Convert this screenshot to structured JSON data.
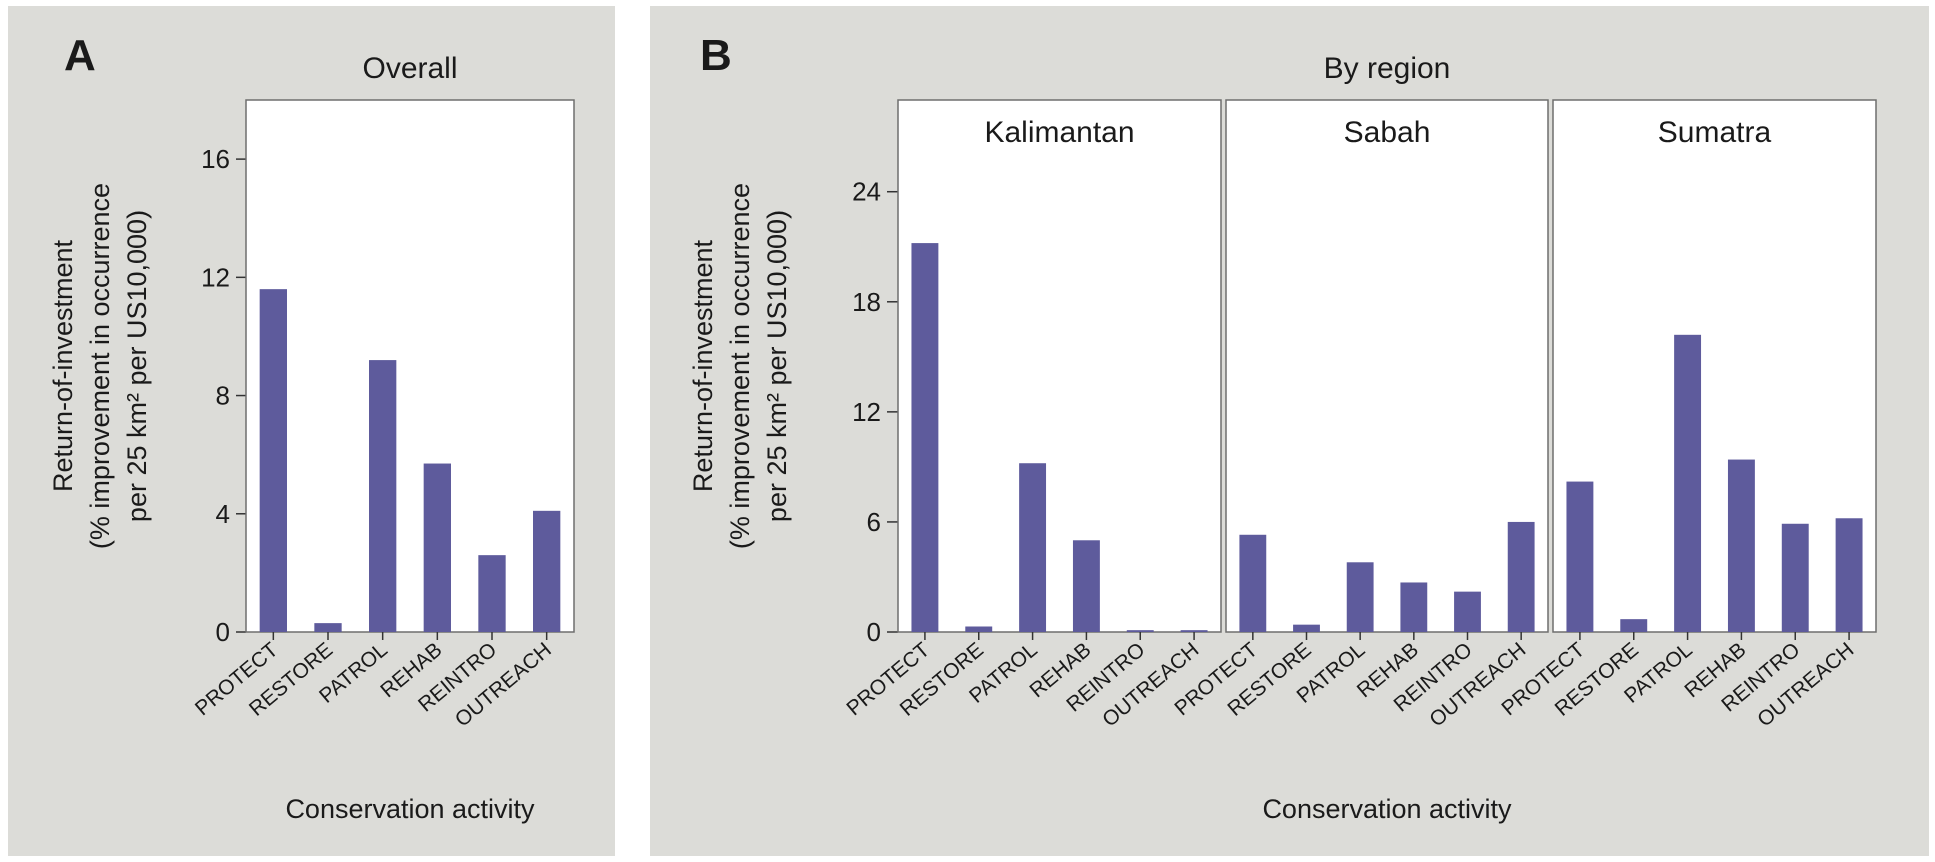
{
  "chart_data": [
    {
      "panel_letter": "A",
      "type": "bar",
      "title": "Overall",
      "xlabel": "Conservation activity",
      "ylabel_lines": [
        "Return-of-investment",
        "(% improvement in occurrence",
        "per 25 km² per US10,000)"
      ],
      "ylim": [
        0,
        18
      ],
      "yticks": [
        0,
        4,
        8,
        12,
        16
      ],
      "categories": [
        "PROTECT",
        "RESTORE",
        "PATROL",
        "REHAB",
        "REINTRO",
        "OUTREACH"
      ],
      "facets": [
        {
          "label": "",
          "values": [
            11.6,
            0.3,
            9.2,
            5.7,
            2.6,
            4.1
          ]
        }
      ]
    },
    {
      "panel_letter": "B",
      "type": "bar",
      "title": "By region",
      "xlabel": "Conservation activity",
      "ylabel_lines": [
        "Return-of-investment",
        "(% improvement in occurrence",
        "per 25 km² per US10,000)"
      ],
      "ylim": [
        0,
        29
      ],
      "yticks": [
        0,
        6,
        12,
        18,
        24
      ],
      "categories": [
        "PROTECT",
        "RESTORE",
        "PATROL",
        "REHAB",
        "REINTRO",
        "OUTREACH"
      ],
      "facets": [
        {
          "label": "Kalimantan",
          "values": [
            21.2,
            0.3,
            9.2,
            5.0,
            0.1,
            0.1
          ]
        },
        {
          "label": "Sabah",
          "values": [
            5.3,
            0.4,
            3.8,
            2.7,
            2.2,
            6.0
          ]
        },
        {
          "label": "Sumatra",
          "values": [
            8.2,
            0.7,
            16.2,
            9.4,
            5.9,
            6.2
          ]
        }
      ]
    }
  ],
  "colors": {
    "bar": "#5e5b9c",
    "panel_background": "#dcdcd8",
    "plot_background": "#ffffff"
  }
}
